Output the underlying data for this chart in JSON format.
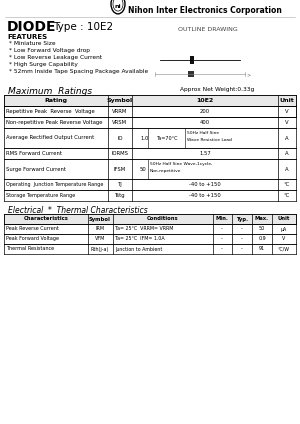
{
  "title_company": "Nihon Inter Electronics Corporation",
  "title_type": "DIODE",
  "title_model": "Type : 10E2",
  "outline_label": "OUTLINE DRAWING",
  "features_title": "FEATURES",
  "features": [
    "* Miniature Size",
    "* Low Forward Voltage drop",
    "* Low Reverse Leakage Current",
    "* High Surge Capability",
    "* 52mm Inside Tape Spacing Package Available"
  ],
  "max_ratings_title": "Maximum  Ratings",
  "approx_weight": "Approx Net Weight:0.33g",
  "max_ratings_headers": [
    "Rating",
    "Symbol",
    "10E2",
    "Unit"
  ],
  "elec_title": "Electrical  *  Thermal Characteristics",
  "elec_headers": [
    "Characteristics",
    "Symbol",
    "Conditions",
    "Min.",
    "Typ.",
    "Max.",
    "Unit"
  ],
  "elec_rows": [
    [
      "Peak Reverse Current",
      "IRM",
      "Ta= 25°C  VRRM= VRRM",
      "-",
      "-",
      "50",
      "μA"
    ],
    [
      "Peak Forward Voltage",
      "VFM",
      "Ta= 25°C  IFM= 1.0A",
      "-",
      "-",
      "0.9",
      "V"
    ],
    [
      "Thermal Resistance",
      "Rth(j-a)",
      "Junction to Ambient",
      "-",
      "-",
      "91",
      "°C/W"
    ]
  ],
  "bg_color": "#ffffff",
  "text_color": "#000000"
}
